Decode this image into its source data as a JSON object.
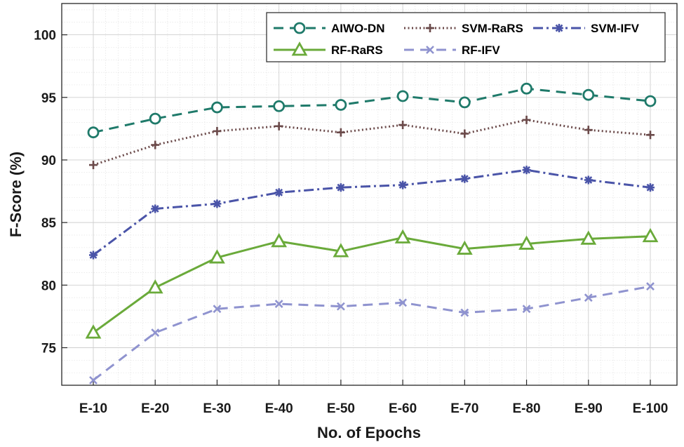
{
  "chart_data": {
    "type": "line",
    "title": "",
    "xlabel": "No. of Epochs",
    "ylabel": "F-Score (%)",
    "categories": [
      "E-10",
      "E-20",
      "E-30",
      "E-40",
      "E-50",
      "E-60",
      "E-70",
      "E-80",
      "E-90",
      "E-100"
    ],
    "ylim": [
      72,
      102.5
    ],
    "yticks": [
      75,
      80,
      85,
      90,
      95,
      100
    ],
    "grid": true,
    "legend_position": "top-right",
    "series": [
      {
        "name": "AIWO-DN",
        "color": "#1f7a6a",
        "dash": "dashed",
        "marker": "circle",
        "values": [
          92.2,
          93.3,
          94.2,
          94.3,
          94.4,
          95.1,
          94.6,
          95.7,
          95.2,
          94.7
        ]
      },
      {
        "name": "SVM-RaRS",
        "color": "#6b4a4a",
        "dash": "dotted",
        "marker": "plus",
        "values": [
          89.6,
          91.2,
          92.3,
          92.7,
          92.2,
          92.8,
          92.1,
          93.2,
          92.4,
          92.0
        ]
      },
      {
        "name": "SVM-IFV",
        "color": "#4a54a8",
        "dash": "dashdot",
        "marker": "asterisk",
        "values": [
          82.4,
          86.1,
          86.5,
          87.4,
          87.8,
          88.0,
          88.5,
          89.2,
          88.4,
          87.8
        ]
      },
      {
        "name": "RF-RaRS",
        "color": "#6aaa3a",
        "dash": "solid",
        "marker": "triangle",
        "values": [
          76.2,
          79.8,
          82.2,
          83.5,
          82.7,
          83.8,
          82.9,
          83.3,
          83.7,
          83.9
        ]
      },
      {
        "name": "RF-IFV",
        "color": "#8f93cf",
        "dash": "dashed",
        "marker": "x",
        "values": [
          72.4,
          76.2,
          78.1,
          78.5,
          78.3,
          78.6,
          77.8,
          78.1,
          79.0,
          79.9
        ]
      }
    ]
  }
}
